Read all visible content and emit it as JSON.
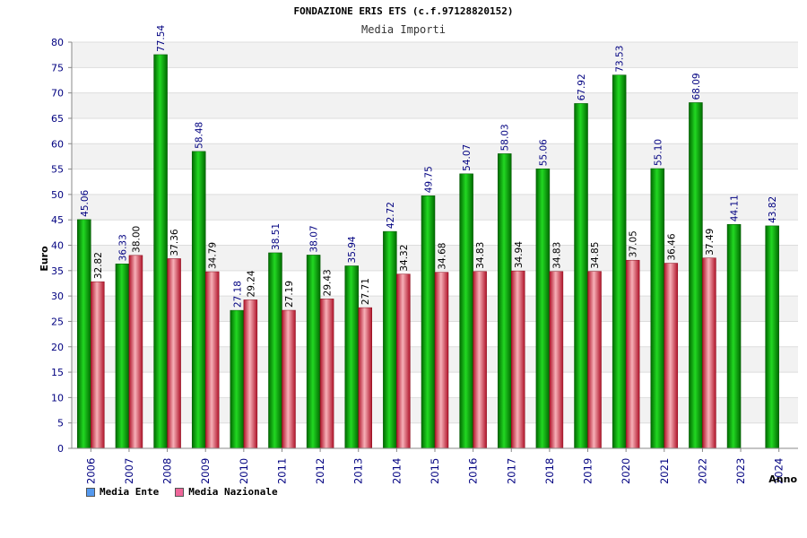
{
  "chart_data": {
    "type": "bar",
    "title": "FONDAZIONE ERIS ETS (c.f.97128820152)",
    "subtitle": "Media Importi",
    "xlabel": "Anno",
    "ylabel": "Euro",
    "ylim": [
      0,
      80
    ],
    "yticks": [
      0,
      5,
      10,
      15,
      20,
      25,
      30,
      35,
      40,
      45,
      50,
      55,
      60,
      65,
      70,
      75,
      80
    ],
    "grid": true,
    "legend_position": "bottom-left",
    "categories": [
      "2006",
      "2007",
      "2008",
      "2009",
      "2010",
      "2011",
      "2012",
      "2013",
      "2014",
      "2015",
      "2016",
      "2017",
      "2018",
      "2019",
      "2020",
      "2021",
      "2022",
      "2023",
      "2024"
    ],
    "series": [
      {
        "name": "Media Ente",
        "color": "#11aa11",
        "legend_color": "#5599ee",
        "values": [
          45.06,
          36.33,
          77.54,
          58.48,
          27.18,
          38.51,
          38.07,
          35.94,
          42.72,
          49.75,
          54.07,
          58.03,
          55.06,
          67.92,
          73.53,
          55.1,
          68.09,
          44.11,
          43.82
        ],
        "labels": [
          "45.06",
          "36.33",
          "77.54",
          "58.48",
          "27.18",
          "38.51",
          "38.07",
          "35.94",
          "42.72",
          "49.75",
          "54.07",
          "58.03",
          "55.06",
          "67.92",
          "73.53",
          "55.10",
          "68.09",
          "44.11",
          "43.82"
        ],
        "label_color": "#000080"
      },
      {
        "name": "Media Nazionale",
        "color": "#e8505a",
        "legend_color": "#ee6699",
        "values": [
          32.82,
          38.0,
          37.36,
          34.79,
          29.24,
          27.19,
          29.43,
          27.71,
          34.32,
          34.68,
          34.83,
          34.94,
          34.83,
          34.85,
          37.05,
          36.46,
          37.49,
          null,
          null
        ],
        "labels": [
          "32.82",
          "38.00",
          "37.36",
          "34.79",
          "29.24",
          "27.19",
          "29.43",
          "27.71",
          "34.32",
          "34.68",
          "34.83",
          "34.94",
          "34.83",
          "34.85",
          "37.05",
          "36.46",
          "37.49",
          "",
          ""
        ],
        "label_color": "#000000"
      }
    ]
  }
}
